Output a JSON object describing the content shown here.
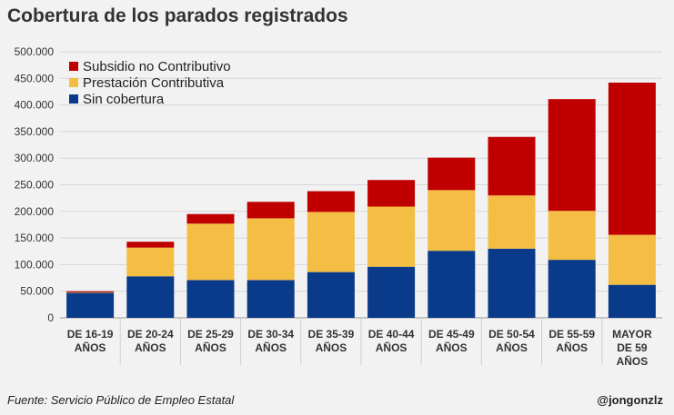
{
  "chart_data": {
    "type": "bar",
    "stacked": true,
    "title": "Cobertura de los parados registrados",
    "xlabel": "",
    "ylabel": "",
    "ylim": [
      0,
      500000
    ],
    "yticks": [
      "0",
      "50.000",
      "100.000",
      "150.000",
      "200.000",
      "250.000",
      "300.000",
      "350.000",
      "400.000",
      "450.000",
      "500.000"
    ],
    "ytick_values": [
      0,
      50000,
      100000,
      150000,
      200000,
      250000,
      300000,
      350000,
      400000,
      450000,
      500000
    ],
    "grid": true,
    "legend_position": "top-left",
    "categories": [
      [
        "DE 16-19",
        "AÑOS"
      ],
      [
        "DE 20-24",
        "AÑOS"
      ],
      [
        "DE 25-29",
        "AÑOS"
      ],
      [
        "DE 30-34",
        "AÑOS"
      ],
      [
        "DE 35-39",
        "AÑOS"
      ],
      [
        "DE 40-44",
        "AÑOS"
      ],
      [
        "DE 45-49",
        "AÑOS"
      ],
      [
        "DE 50-54",
        "AÑOS"
      ],
      [
        "DE 55-59",
        "AÑOS"
      ],
      [
        "MAYOR",
        "DE 59",
        "AÑOS"
      ]
    ],
    "series": [
      {
        "name": "Sin cobertura",
        "color": "#0a3a8a",
        "values": [
          47000,
          78000,
          71000,
          71000,
          86000,
          96000,
          126000,
          130000,
          109000,
          62000
        ]
      },
      {
        "name": "Prestación Contributiva",
        "color": "#f4bd43",
        "values": [
          1000,
          54000,
          106000,
          116000,
          113000,
          113000,
          114000,
          100000,
          92000,
          94000
        ]
      },
      {
        "name": "Subsidio no Contributivo",
        "color": "#c00000",
        "values": [
          2000,
          11000,
          18000,
          31000,
          39000,
          50000,
          61000,
          110000,
          210000,
          286000
        ]
      }
    ],
    "legend_order": [
      "Subsidio no Contributivo",
      "Prestación Contributiva",
      "Sin cobertura"
    ]
  },
  "footer": {
    "source": "Fuente: Servicio Público de Empleo Estatal",
    "handle": "@jongonzlz"
  }
}
